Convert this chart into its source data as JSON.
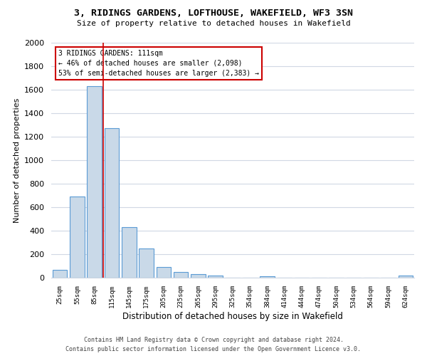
{
  "title": "3, RIDINGS GARDENS, LOFTHOUSE, WAKEFIELD, WF3 3SN",
  "subtitle": "Size of property relative to detached houses in Wakefield",
  "bar_labels": [
    "25sqm",
    "55sqm",
    "85sqm",
    "115sqm",
    "145sqm",
    "175sqm",
    "205sqm",
    "235sqm",
    "265sqm",
    "295sqm",
    "325sqm",
    "354sqm",
    "384sqm",
    "414sqm",
    "444sqm",
    "474sqm",
    "504sqm",
    "534sqm",
    "564sqm",
    "594sqm",
    "624sqm"
  ],
  "bar_values": [
    65,
    690,
    1630,
    1270,
    430,
    250,
    90,
    50,
    30,
    20,
    0,
    0,
    15,
    0,
    0,
    0,
    0,
    0,
    0,
    0,
    20
  ],
  "bar_color": "#c9d9e8",
  "bar_edge_color": "#5b9bd5",
  "ylim": [
    0,
    2000
  ],
  "yticks": [
    0,
    200,
    400,
    600,
    800,
    1000,
    1200,
    1400,
    1600,
    1800,
    2000
  ],
  "ylabel": "Number of detached properties",
  "xlabel": "Distribution of detached houses by size in Wakefield",
  "property_label": "3 RIDINGS GARDENS: 111sqm",
  "annotation_line1": "← 46% of detached houses are smaller (2,098)",
  "annotation_line2": "53% of semi-detached houses are larger (2,383) →",
  "annotation_box_color": "#ffffff",
  "annotation_box_edge": "#cc0000",
  "footer_line1": "Contains HM Land Registry data © Crown copyright and database right 2024.",
  "footer_line2": "Contains public sector information licensed under the Open Government Licence v3.0.",
  "background_color": "#ffffff",
  "grid_color": "#d0d8e4"
}
